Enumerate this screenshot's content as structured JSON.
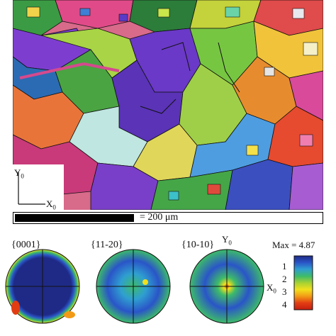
{
  "ebsd_map": {
    "axis_y": "Y",
    "axis_y_sub": "0",
    "axis_x": "X",
    "axis_x_sub": "0",
    "scale_label": "= 200 μm"
  },
  "pole_figures": [
    {
      "label": "{0001}"
    },
    {
      "label": "{11-20}"
    },
    {
      "label": "{10-10}"
    }
  ],
  "pf_axes": {
    "y": "Y",
    "y_sub": "0",
    "x": "X",
    "x_sub": "0"
  },
  "colorbar": {
    "max_label": "Max = 4.87",
    "ticks": [
      "1",
      "2",
      "3",
      "4"
    ],
    "colors": [
      "#1f2a86",
      "#2a55c8",
      "#2f9fd0",
      "#3dbb6a",
      "#a7d133",
      "#f2e01c",
      "#f29a16",
      "#e23c12",
      "#c41e10"
    ]
  }
}
